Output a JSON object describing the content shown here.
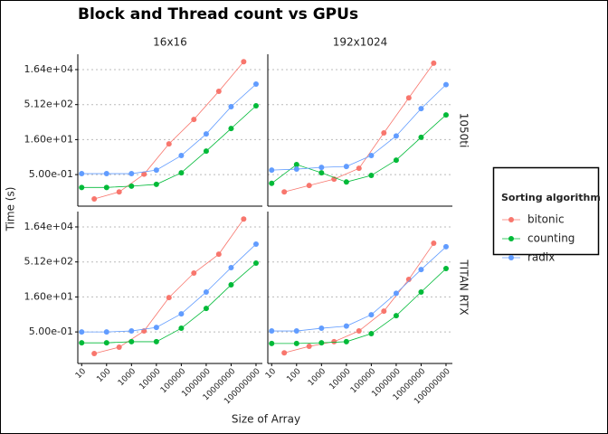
{
  "chart_data": {
    "type": "line",
    "title": "Block and Thread count vs GPUs",
    "x_label": "Size of Array",
    "y_label": "Time (s)",
    "legend_title": "Sorting algorithm",
    "log_x": true,
    "log_y": true,
    "grid": true,
    "facet_cols": [
      "16x16",
      "192x1024"
    ],
    "facet_rows": [
      "1050ti",
      "TITAN RTX"
    ],
    "xlim": [
      7,
      180000000
    ],
    "xticks": [
      10,
      100,
      1000,
      10000,
      100000,
      1000000,
      10000000,
      100000000
    ],
    "ylim": [
      0.022,
      75000
    ],
    "yticks": [
      {
        "value": 0.5,
        "label": "5.00e-01"
      },
      {
        "value": 16,
        "label": "1.60e+01"
      },
      {
        "value": 512,
        "label": "5.12e+02"
      },
      {
        "value": 16400,
        "label": "1.64e+04"
      }
    ],
    "panels": [
      {
        "series": [
          {
            "name": "bitonic",
            "color": "#F8766D",
            "x": [
              32,
              320,
              3200,
              32000,
              320000,
              3200000,
              32000000
            ],
            "values": [
              0.045,
              0.09,
              0.52,
              10.5,
              118,
              1900,
              36000
            ]
          },
          {
            "name": "counting",
            "color": "#00BA38",
            "x": [
              10,
              100,
              1000,
              10000,
              100000,
              1000000,
              10000000,
              100000000
            ],
            "values": [
              0.14,
              0.14,
              0.16,
              0.19,
              0.6,
              5.1,
              48,
              455
            ]
          },
          {
            "name": "radix",
            "color": "#619CFF",
            "x": [
              10,
              100,
              1000,
              10000,
              100000,
              1000000,
              10000000,
              100000000
            ],
            "values": [
              0.55,
              0.55,
              0.55,
              0.78,
              3.3,
              28,
              417,
              3900
            ]
          }
        ]
      },
      {
        "series": [
          {
            "name": "bitonic",
            "color": "#F8766D",
            "x": [
              32,
              320,
              3200,
              32000,
              320000,
              3200000,
              32000000
            ],
            "values": [
              0.09,
              0.17,
              0.32,
              0.93,
              31,
              1000,
              31000
            ]
          },
          {
            "name": "counting",
            "color": "#00BA38",
            "x": [
              10,
              100,
              1000,
              10000,
              100000,
              1000000,
              10000000,
              100000000
            ],
            "values": [
              0.21,
              1.35,
              0.6,
              0.24,
              0.46,
              2.1,
              20,
              185
            ]
          },
          {
            "name": "radix",
            "color": "#619CFF",
            "x": [
              10,
              100,
              1000,
              10000,
              100000,
              1000000,
              10000000,
              100000000
            ],
            "values": [
              0.78,
              0.86,
              1.02,
              1.12,
              3.3,
              23,
              345,
              3700
            ]
          }
        ]
      },
      {
        "series": [
          {
            "name": "bitonic",
            "color": "#F8766D",
            "x": [
              32,
              320,
              3200,
              32000,
              320000,
              3200000,
              32000000
            ],
            "values": [
              0.059,
              0.11,
              0.55,
              15,
              170,
              1100,
              36000
            ]
          },
          {
            "name": "counting",
            "color": "#00BA38",
            "x": [
              10,
              100,
              1000,
              10000,
              100000,
              1000000,
              10000000,
              100000000
            ],
            "values": [
              0.17,
              0.17,
              0.19,
              0.19,
              0.72,
              5.1,
              53,
              455
            ]
          },
          {
            "name": "radix",
            "color": "#619CFF",
            "x": [
              10,
              100,
              1000,
              10000,
              100000,
              1000000,
              10000000,
              100000000
            ],
            "values": [
              0.5,
              0.5,
              0.55,
              0.78,
              3,
              26,
              290,
              3000
            ]
          }
        ]
      },
      {
        "series": [
          {
            "name": "bitonic",
            "color": "#F8766D",
            "x": [
              32,
              320,
              3200,
              32000,
              320000,
              3200000,
              32000000
            ],
            "values": [
              0.063,
              0.12,
              0.19,
              0.55,
              3.9,
              91,
              3250
            ]
          },
          {
            "name": "counting",
            "color": "#00BA38",
            "x": [
              10,
              100,
              1000,
              10000,
              100000,
              1000000,
              10000000,
              100000000
            ],
            "values": [
              0.16,
              0.16,
              0.17,
              0.19,
              0.42,
              2.5,
              26,
              265
            ]
          },
          {
            "name": "radix",
            "color": "#619CFF",
            "x": [
              10,
              100,
              1000,
              10000,
              100000,
              1000000,
              10000000,
              100000000
            ],
            "values": [
              0.55,
              0.55,
              0.72,
              0.89,
              2.75,
              23,
              240,
              2300
            ]
          }
        ]
      }
    ]
  }
}
